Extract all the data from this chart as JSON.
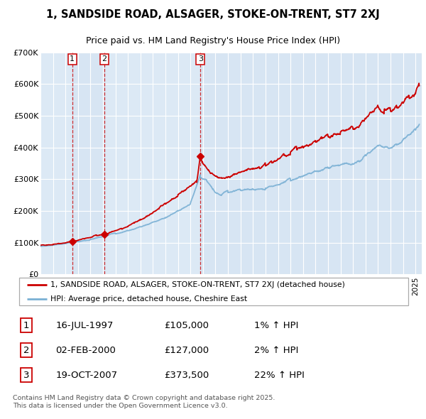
{
  "title": "1, SANDSIDE ROAD, ALSAGER, STOKE-ON-TRENT, ST7 2XJ",
  "subtitle": "Price paid vs. HM Land Registry's House Price Index (HPI)",
  "plot_bg_color": "#dce9f5",
  "red_color": "#cc0000",
  "blue_color": "#7ab0d4",
  "purchase_dates": [
    1997.54,
    2000.09,
    2007.8
  ],
  "purchase_prices": [
    105000,
    127000,
    373500
  ],
  "purchase_labels": [
    "1",
    "2",
    "3"
  ],
  "legend_line1": "1, SANDSIDE ROAD, ALSAGER, STOKE-ON-TRENT, ST7 2XJ (detached house)",
  "legend_line2": "HPI: Average price, detached house, Cheshire East",
  "table_data": [
    [
      "1",
      "16-JUL-1997",
      "£105,000",
      "1% ↑ HPI"
    ],
    [
      "2",
      "02-FEB-2000",
      "£127,000",
      "2% ↑ HPI"
    ],
    [
      "3",
      "19-OCT-2007",
      "£373,500",
      "22% ↑ HPI"
    ]
  ],
  "footer": "Contains HM Land Registry data © Crown copyright and database right 2025.\nThis data is licensed under the Open Government Licence v3.0.",
  "ylim": [
    0,
    700000
  ],
  "yticks": [
    0,
    100000,
    200000,
    300000,
    400000,
    500000,
    600000,
    700000
  ],
  "ytick_labels": [
    "£0",
    "£100K",
    "£200K",
    "£300K",
    "£400K",
    "£500K",
    "£600K",
    "£700K"
  ],
  "xstart": 1995.0,
  "xend": 2025.5
}
